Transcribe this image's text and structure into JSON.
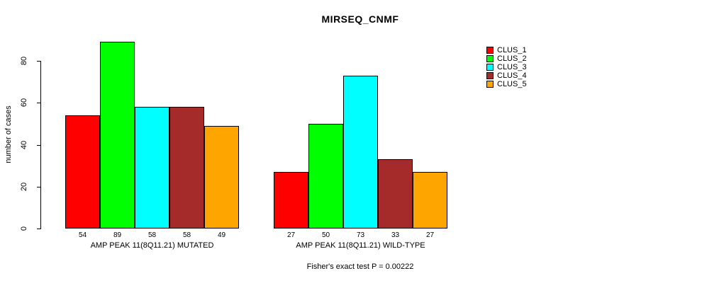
{
  "title": "MIRSEQ_CNMF",
  "ylabel": "number of cases",
  "footnote": "Fisher's exact test P = 0.00222",
  "legend": {
    "position": "top-right",
    "items": [
      {
        "label": "CLUS_1",
        "color": "#ff0000"
      },
      {
        "label": "CLUS_2",
        "color": "#00ff00"
      },
      {
        "label": "CLUS_3",
        "color": "#00ffff"
      },
      {
        "label": "CLUS_4",
        "color": "#a52a2a"
      },
      {
        "label": "CLUS_5",
        "color": "#ffa500"
      }
    ]
  },
  "chart_data": {
    "type": "bar",
    "title": "MIRSEQ_CNMF",
    "xlabel": "",
    "ylabel": "number of cases",
    "ylim": [
      0,
      89
    ],
    "yticks": [
      0,
      20,
      40,
      60,
      80
    ],
    "grid": false,
    "legend_position": "right",
    "bar_value_labels": true,
    "categories": [
      "AMP PEAK 11(8Q11.21) MUTATED",
      "AMP PEAK 11(8Q11.21) WILD-TYPE"
    ],
    "series": [
      {
        "name": "CLUS_1",
        "color": "#ff0000",
        "values": [
          54,
          27
        ]
      },
      {
        "name": "CLUS_2",
        "color": "#00ff00",
        "values": [
          89,
          50
        ]
      },
      {
        "name": "CLUS_3",
        "color": "#00ffff",
        "values": [
          58,
          73
        ]
      },
      {
        "name": "CLUS_4",
        "color": "#a52a2a",
        "values": [
          58,
          33
        ]
      },
      {
        "name": "CLUS_5",
        "color": "#ffa500",
        "values": [
          49,
          27
        ]
      }
    ],
    "annotation": "Fisher's exact test P = 0.00222"
  }
}
